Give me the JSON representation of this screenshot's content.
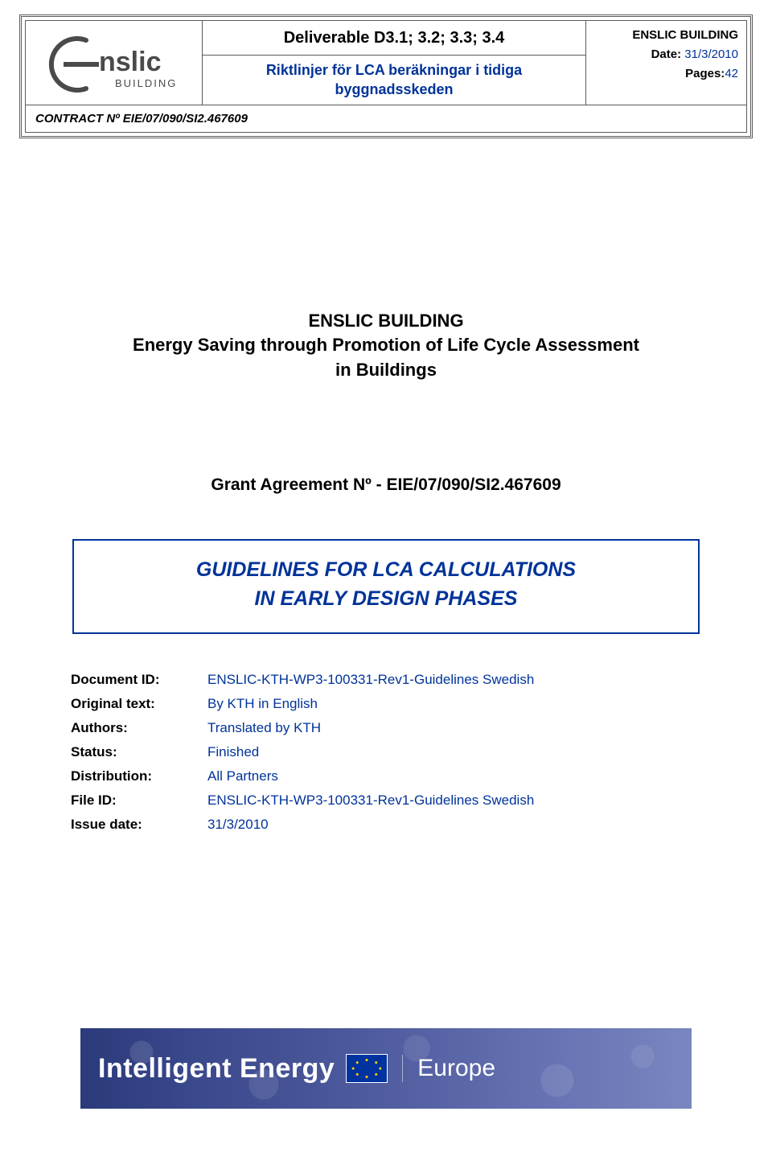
{
  "header": {
    "logo": {
      "brand_top": "nslic",
      "brand_sub": "BUILDING"
    },
    "deliverable_title": "Deliverable D3.1; 3.2; 3.3; 3.4",
    "subtitle_line1": "Riktlinjer för LCA beräkningar i tidiga",
    "subtitle_line2": "byggnadsskeden",
    "right": {
      "org_label": "ENSLIC BUILDING",
      "date_label": "Date:",
      "date_value": "31/3/2010",
      "pages_label": "Pages:",
      "pages_value": "42"
    },
    "contract_line": "CONTRACT Nº EIE/07/090/SI2.467609"
  },
  "main": {
    "title_line1": "ENSLIC BUILDING",
    "title_line2": "Energy Saving through Promotion of Life Cycle Assessment",
    "title_line3": "in Buildings",
    "grant_line": "Grant Agreement Nº - EIE/07/090/SI2.467609",
    "guidelines_line1": "GUIDELINES FOR LCA CALCULATIONS",
    "guidelines_line2": "IN EARLY DESIGN PHASES"
  },
  "meta": {
    "rows": [
      {
        "label": "Document ID:",
        "value": "ENSLIC-KTH-WP3-100331-Rev1-Guidelines Swedish"
      },
      {
        "label": "Original text:",
        "value": "By KTH in English"
      },
      {
        "label": "Authors:",
        "value": "Translated by KTH"
      },
      {
        "label": "Status:",
        "value": "Finished"
      },
      {
        "label": "Distribution:",
        "value": "All Partners"
      },
      {
        "label": "File ID:",
        "value": "ENSLIC-KTH-WP3-100331-Rev1-Guidelines Swedish"
      },
      {
        "label": "Issue date:",
        "value": "31/3/2010"
      }
    ]
  },
  "footer": {
    "left_text": "Intelligent Energy",
    "right_text": "Europe"
  },
  "colors": {
    "accent_blue": "#003399",
    "border_gray": "#5b5b5b",
    "banner_grad_from": "#2a3a7a",
    "banner_grad_to": "#7a86bf",
    "eu_flag_bg": "#0033a0",
    "eu_star": "#ffcc00"
  }
}
